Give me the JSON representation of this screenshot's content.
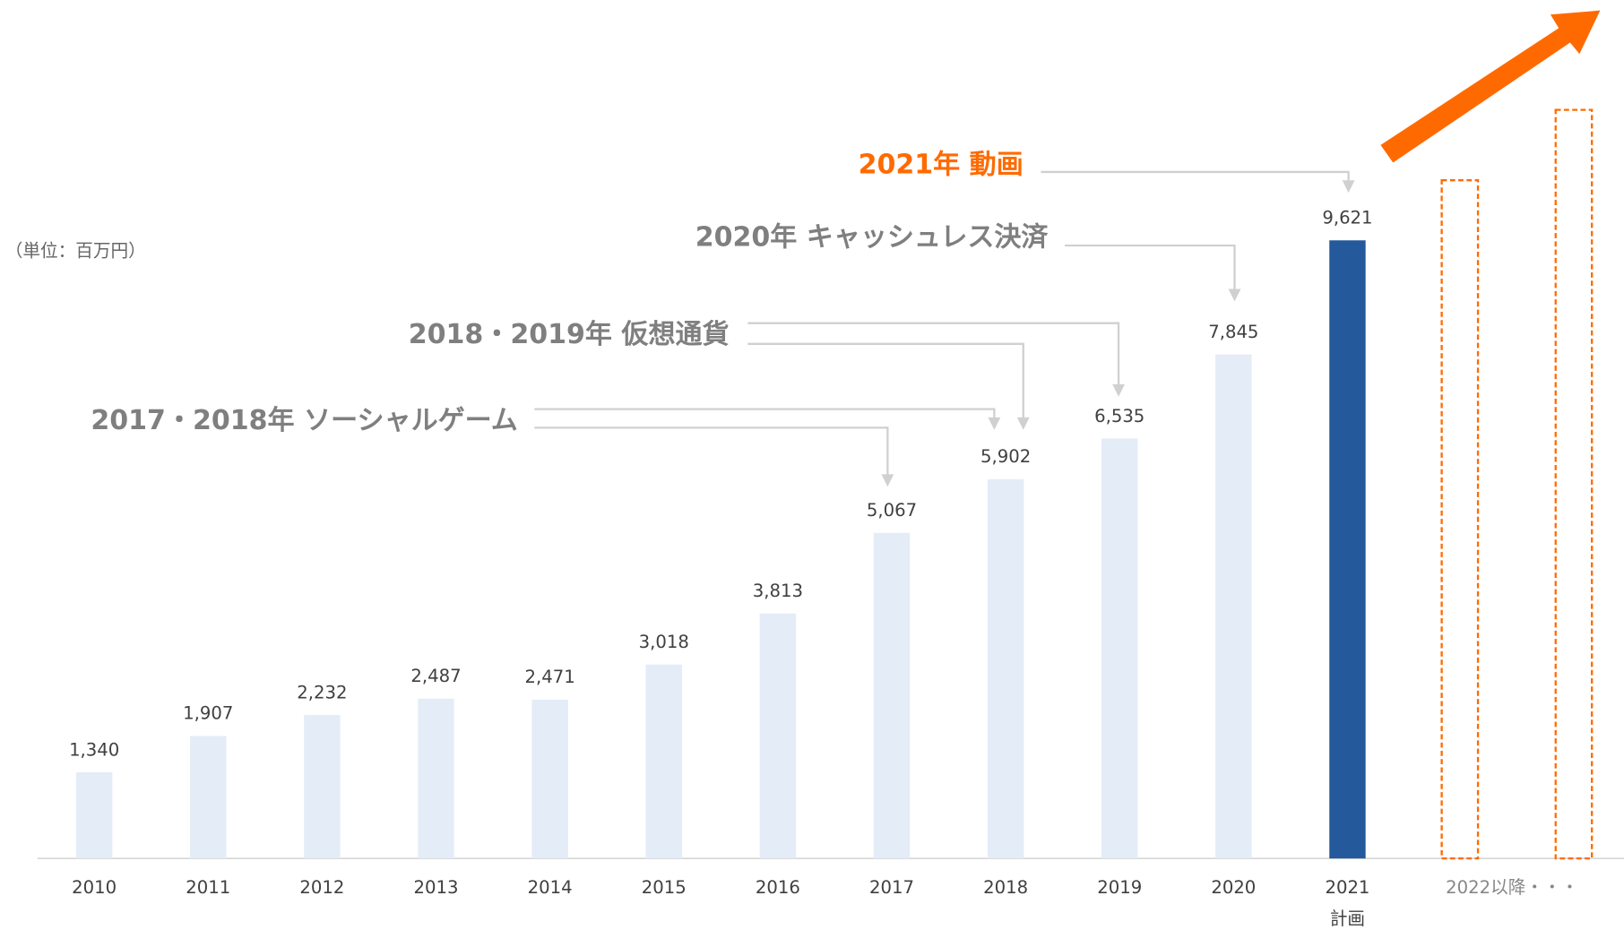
{
  "chart_data": {
    "type": "bar",
    "unit_label": "（単位：百万円）",
    "categories": [
      "2010",
      "2011",
      "2012",
      "2013",
      "2014",
      "2015",
      "2016",
      "2017",
      "2018",
      "2019",
      "2020",
      "2021",
      "2022以降・・・"
    ],
    "category_sublabels": [
      null,
      null,
      null,
      null,
      null,
      null,
      null,
      null,
      null,
      null,
      null,
      "計画",
      null
    ],
    "values": [
      1340,
      1907,
      2232,
      2487,
      2471,
      3018,
      3813,
      5067,
      5902,
      6535,
      7845,
      9621,
      null
    ],
    "value_labels": [
      "1,340",
      "1,907",
      "2,232",
      "2,487",
      "2,471",
      "3,018",
      "3,813",
      "5,067",
      "5,902",
      "6,535",
      "7,845",
      "9,621",
      null
    ],
    "colors": [
      "#e4ecf7",
      "#e4ecf7",
      "#e4ecf7",
      "#e4ecf7",
      "#e4ecf7",
      "#e4ecf7",
      "#e4ecf7",
      "#e4ecf7",
      "#e4ecf7",
      "#e4ecf7",
      "#e4ecf7",
      "#245a9c",
      null
    ],
    "ylim": [
      0,
      10000
    ],
    "annotations": [
      {
        "text": "2021年 動画",
        "color": "#ff6a00"
      },
      {
        "text": "2020年 キャッシュレス決済",
        "color": "#7f7f7f"
      },
      {
        "text": "2018・2019年 仮想通貨",
        "color": "#7f7f7f"
      },
      {
        "text": "2017・2018年 ソーシャルゲーム",
        "color": "#7f7f7f"
      }
    ]
  }
}
